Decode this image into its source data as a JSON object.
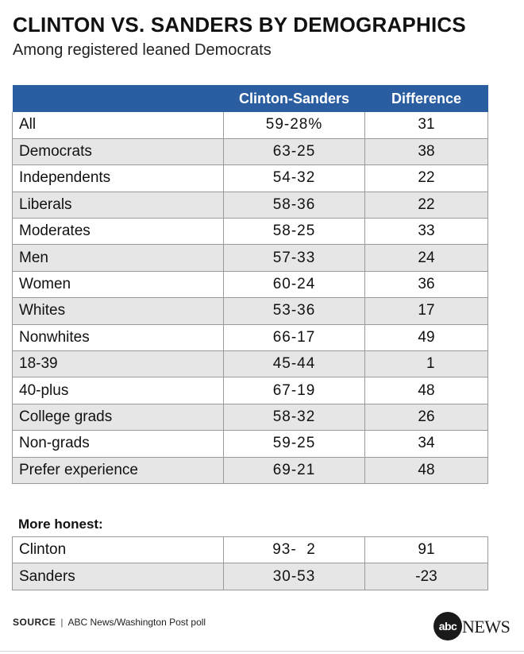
{
  "title": "CLINTON VS. SANDERS BY DEMOGRAPHICS",
  "subtitle": "Among registered leaned Democrats",
  "chart_data": {
    "type": "table",
    "columns": [
      "",
      "Clinton-Sanders",
      "Difference"
    ],
    "rows": [
      {
        "label": "All",
        "clinton_sanders": "59-28%",
        "difference": "31"
      },
      {
        "label": "Democrats",
        "clinton_sanders": "63-25",
        "difference": "38"
      },
      {
        "label": "Independents",
        "clinton_sanders": "54-32",
        "difference": "22"
      },
      {
        "label": "Liberals",
        "clinton_sanders": "58-36",
        "difference": "22"
      },
      {
        "label": "Moderates",
        "clinton_sanders": "58-25",
        "difference": "33"
      },
      {
        "label": "Men",
        "clinton_sanders": "57-33",
        "difference": "24"
      },
      {
        "label": "Women",
        "clinton_sanders": "60-24",
        "difference": "36"
      },
      {
        "label": "Whites",
        "clinton_sanders": "53-36",
        "difference": "17"
      },
      {
        "label": "Nonwhites",
        "clinton_sanders": "66-17",
        "difference": "49"
      },
      {
        "label": "18-39",
        "clinton_sanders": "45-44",
        "difference": "  1"
      },
      {
        "label": "40-plus",
        "clinton_sanders": "67-19",
        "difference": "48"
      },
      {
        "label": "College grads",
        "clinton_sanders": "58-32",
        "difference": "26"
      },
      {
        "label": "Non-grads",
        "clinton_sanders": "59-25",
        "difference": "34"
      },
      {
        "label": "Prefer experience",
        "clinton_sanders": "69-21",
        "difference": "48"
      }
    ],
    "section": {
      "label": "More honest:",
      "rows": [
        {
          "label": "Clinton",
          "clinton_sanders": "93-  2",
          "difference": "91"
        },
        {
          "label": "Sanders",
          "clinton_sanders": "30-53",
          "difference": "-23"
        }
      ]
    }
  },
  "source": {
    "label": "SOURCE",
    "separator": "|",
    "text": "ABC News/Washington Post poll"
  },
  "logo": {
    "mark": "abc",
    "word": "NEWS"
  },
  "colors": {
    "header_bg": "#2a5ea1",
    "stripe": "#e6e6e6",
    "border": "#9a9a9a"
  }
}
